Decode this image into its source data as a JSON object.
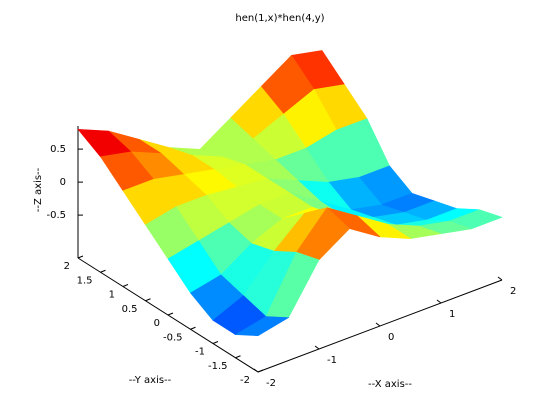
{
  "chart_data": {
    "type": "surface",
    "title": "hen(1,x)*hen(4,y)",
    "xlabel": "--X axis--",
    "ylabel": "--Y axis--",
    "zlabel": "--Z axis--",
    "x": [
      -2,
      -1.5,
      -1,
      -0.5,
      0,
      0.5,
      1,
      1.5,
      2
    ],
    "y": [
      -2,
      -1.5,
      -1,
      -0.5,
      0,
      0.5,
      1,
      1.5,
      2
    ],
    "z": [
      [
        -0.6,
        -0.5,
        0.2,
        0.5,
        0.2,
        0,
        -0.1,
        -0.2,
        -0.2
      ],
      [
        -0.8,
        -0.7,
        0.1,
        0.6,
        0.3,
        0,
        -0.2,
        -0.3,
        -0.3
      ],
      [
        -0.8,
        -0.6,
        -0.1,
        0.3,
        0.1,
        -0.2,
        -0.4,
        -0.5,
        -0.5
      ],
      [
        -0.6,
        -0.5,
        -0.2,
        0,
        0,
        -0.3,
        -0.5,
        -0.6,
        -0.6
      ],
      [
        -0.3,
        -0.2,
        -0.1,
        0,
        0,
        -0.3,
        -0.6,
        -0.7,
        -0.7
      ],
      [
        0,
        0.1,
        0.1,
        0.05,
        0,
        -0.2,
        -0.4,
        -0.5,
        -0.5
      ],
      [
        0.3,
        0.3,
        0.2,
        0.1,
        0,
        -0.1,
        -0.1,
        0,
        0
      ],
      [
        0.6,
        0.5,
        0.3,
        0.1,
        -0.1,
        0,
        0.2,
        0.4,
        0.3
      ],
      [
        0.8,
        0.6,
        0.3,
        0,
        -0.2,
        0.1,
        0.4,
        0.7,
        0.6
      ]
    ],
    "xlim": [
      -2,
      2
    ],
    "ylim": [
      -2,
      2
    ],
    "zlim": [
      -1.15,
      0.85
    ],
    "xticks": [
      -2,
      -1,
      0,
      1,
      2
    ],
    "yticks": [
      -2,
      -1.5,
      -1,
      -0.5,
      0,
      0.5,
      1,
      1.5,
      2
    ],
    "zticks": [
      -0.5,
      0,
      0.5
    ],
    "colormap": "jet"
  }
}
